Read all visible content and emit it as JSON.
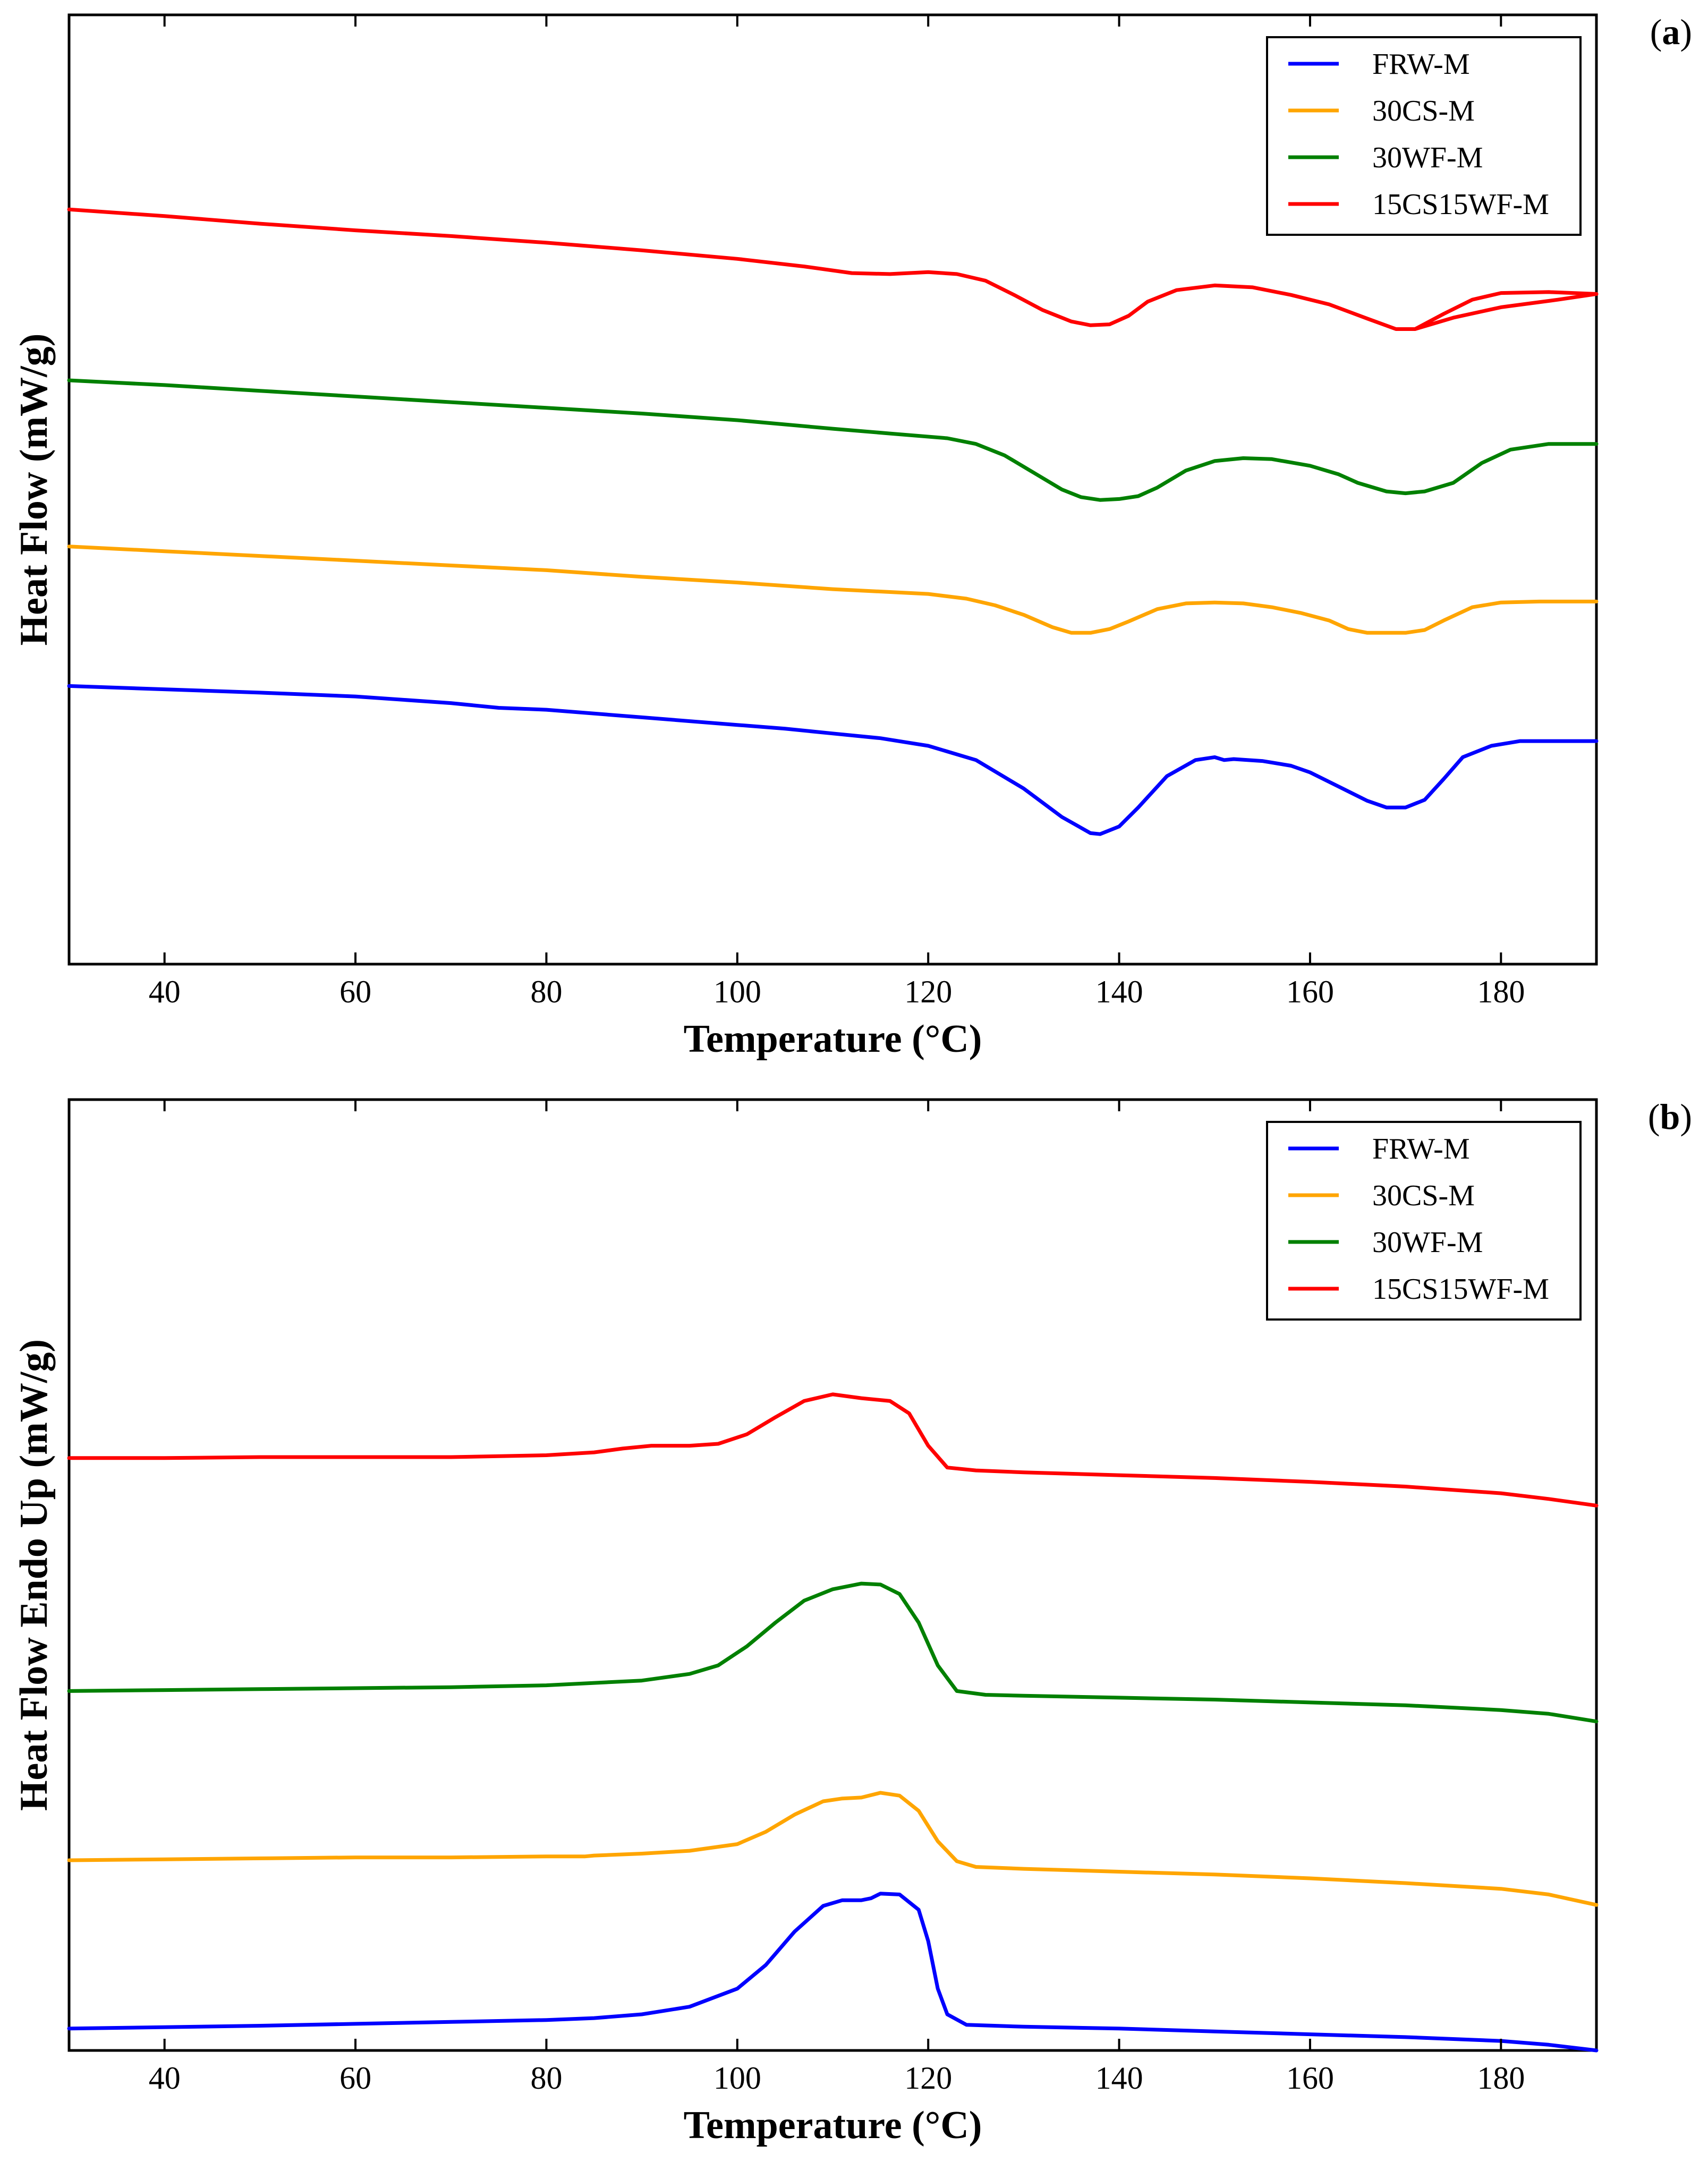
{
  "chart_data": [
    {
      "id": "a",
      "type": "line",
      "panel_label": "a",
      "xlabel": "Temperature (°C)",
      "ylabel": "Heat Flow (mW/g)",
      "xlim": [
        30,
        190
      ],
      "ylim": [
        0,
        100
      ],
      "xticks": [
        40,
        60,
        80,
        100,
        120,
        140,
        160,
        180
      ],
      "legend_position": "top-right",
      "series": [
        {
          "name": "FRW-M",
          "color": "#0000ff",
          "points": [
            [
              30,
              29.3
            ],
            [
              50,
              28.6
            ],
            [
              60,
              28.2
            ],
            [
              70,
              27.5
            ],
            [
              75,
              27.0
            ],
            [
              80,
              26.8
            ],
            [
              90,
              26.0
            ],
            [
              100,
              25.2
            ],
            [
              105,
              24.8
            ],
            [
              110,
              24.3
            ],
            [
              115,
              23.8
            ],
            [
              120,
              23.0
            ],
            [
              125,
              21.5
            ],
            [
              130,
              18.5
            ],
            [
              134,
              15.5
            ],
            [
              137,
              13.8
            ],
            [
              138,
              13.7
            ],
            [
              140,
              14.5
            ],
            [
              142,
              16.5
            ],
            [
              145,
              19.8
            ],
            [
              148,
              21.5
            ],
            [
              150,
              21.8
            ],
            [
              151,
              21.5
            ],
            [
              152,
              21.6
            ],
            [
              155,
              21.4
            ],
            [
              158,
              20.9
            ],
            [
              160,
              20.2
            ],
            [
              163,
              18.7
            ],
            [
              166,
              17.2
            ],
            [
              168,
              16.5
            ],
            [
              170,
              16.5
            ],
            [
              172,
              17.3
            ],
            [
              174,
              19.5
            ],
            [
              176,
              21.8
            ],
            [
              179,
              23.0
            ],
            [
              182,
              23.5
            ],
            [
              186,
              23.5
            ],
            [
              190,
              23.5
            ]
          ]
        },
        {
          "name": "30CS-M",
          "color": "#ffa500",
          "points": [
            [
              30,
              44.0
            ],
            [
              40,
              43.5
            ],
            [
              50,
              43.0
            ],
            [
              60,
              42.5
            ],
            [
              70,
              42.0
            ],
            [
              80,
              41.5
            ],
            [
              90,
              40.8
            ],
            [
              100,
              40.2
            ],
            [
              110,
              39.5
            ],
            [
              120,
              39.0
            ],
            [
              124,
              38.5
            ],
            [
              127,
              37.8
            ],
            [
              130,
              36.8
            ],
            [
              133,
              35.5
            ],
            [
              135,
              34.9
            ],
            [
              137,
              34.9
            ],
            [
              139,
              35.3
            ],
            [
              141,
              36.1
            ],
            [
              144,
              37.4
            ],
            [
              147,
              38.0
            ],
            [
              150,
              38.1
            ],
            [
              153,
              38.0
            ],
            [
              156,
              37.6
            ],
            [
              159,
              37.0
            ],
            [
              162,
              36.2
            ],
            [
              164,
              35.3
            ],
            [
              166,
              34.9
            ],
            [
              170,
              34.9
            ],
            [
              172,
              35.2
            ],
            [
              174,
              36.2
            ],
            [
              177,
              37.6
            ],
            [
              180,
              38.1
            ],
            [
              184,
              38.2
            ],
            [
              190,
              38.2
            ]
          ]
        },
        {
          "name": "30WF-M",
          "color": "#008000",
          "points": [
            [
              30,
              61.5
            ],
            [
              40,
              61.0
            ],
            [
              50,
              60.4
            ],
            [
              60,
              59.8
            ],
            [
              70,
              59.2
            ],
            [
              80,
              58.6
            ],
            [
              90,
              58.0
            ],
            [
              100,
              57.3
            ],
            [
              110,
              56.4
            ],
            [
              116,
              55.9
            ],
            [
              122,
              55.4
            ],
            [
              125,
              54.8
            ],
            [
              128,
              53.6
            ],
            [
              131,
              51.8
            ],
            [
              134,
              50.0
            ],
            [
              136,
              49.2
            ],
            [
              138,
              48.9
            ],
            [
              140,
              49.0
            ],
            [
              142,
              49.3
            ],
            [
              144,
              50.2
            ],
            [
              147,
              52.0
            ],
            [
              150,
              53.0
            ],
            [
              153,
              53.3
            ],
            [
              156,
              53.2
            ],
            [
              160,
              52.5
            ],
            [
              163,
              51.6
            ],
            [
              165,
              50.7
            ],
            [
              168,
              49.8
            ],
            [
              170,
              49.6
            ],
            [
              172,
              49.8
            ],
            [
              175,
              50.7
            ],
            [
              178,
              52.8
            ],
            [
              181,
              54.2
            ],
            [
              185,
              54.8
            ],
            [
              190,
              54.8
            ]
          ]
        },
        {
          "name": "15CS15WF-M",
          "color": "#ff0000",
          "points": [
            [
              30,
              79.5
            ],
            [
              40,
              78.8
            ],
            [
              50,
              78.0
            ],
            [
              60,
              77.3
            ],
            [
              70,
              76.7
            ],
            [
              80,
              76.0
            ],
            [
              90,
              75.2
            ],
            [
              100,
              74.3
            ],
            [
              107,
              73.5
            ],
            [
              112,
              72.8
            ],
            [
              116,
              72.7
            ],
            [
              120,
              72.9
            ],
            [
              123,
              72.7
            ],
            [
              126,
              72.0
            ],
            [
              129,
              70.5
            ],
            [
              132,
              68.9
            ],
            [
              135,
              67.7
            ],
            [
              137,
              67.3
            ],
            [
              139,
              67.4
            ],
            [
              141,
              68.3
            ],
            [
              143,
              69.8
            ],
            [
              146,
              71.0
            ],
            [
              150,
              71.5
            ],
            [
              154,
              71.3
            ],
            [
              158,
              70.5
            ],
            [
              162,
              69.5
            ],
            [
              166,
              68.0
            ],
            [
              169,
              66.9
            ],
            [
              171,
              66.9
            ],
            [
              174,
              68.5
            ],
            [
              177,
              70.0
            ],
            [
              180,
              70.7
            ],
            [
              185,
              70.8
            ],
            [
              190,
              70.6
            ],
            [
              186,
              70.0
            ],
            [
              180,
              69.2
            ],
            [
              175,
              68.1
            ],
            [
              172,
              67.2
            ],
            [
              171,
              66.9
            ]
          ]
        }
      ]
    },
    {
      "id": "b",
      "type": "line",
      "panel_label": "b",
      "xlabel": "Temperature (°C)",
      "ylabel": "Heat Flow Endo Up (mW/g)",
      "xlim": [
        30,
        190
      ],
      "ylim": [
        0,
        100
      ],
      "xticks": [
        40,
        60,
        80,
        100,
        120,
        140,
        160,
        180
      ],
      "legend_position": "top-right",
      "series": [
        {
          "name": "FRW-M",
          "color": "#0000ff",
          "points": [
            [
              30,
              2.3
            ],
            [
              50,
              2.6
            ],
            [
              60,
              2.8
            ],
            [
              70,
              3.0
            ],
            [
              80,
              3.2
            ],
            [
              85,
              3.4
            ],
            [
              90,
              3.8
            ],
            [
              95,
              4.6
            ],
            [
              100,
              6.5
            ],
            [
              103,
              9.0
            ],
            [
              106,
              12.5
            ],
            [
              109,
              15.2
            ],
            [
              111,
              15.8
            ],
            [
              113,
              15.8
            ],
            [
              114,
              16.0
            ],
            [
              115,
              16.5
            ],
            [
              117,
              16.4
            ],
            [
              119,
              14.8
            ],
            [
              120,
              11.5
            ],
            [
              121,
              6.5
            ],
            [
              122,
              3.8
            ],
            [
              124,
              2.7
            ],
            [
              130,
              2.5
            ],
            [
              140,
              2.3
            ],
            [
              150,
              2.0
            ],
            [
              160,
              1.7
            ],
            [
              170,
              1.4
            ],
            [
              180,
              1.0
            ],
            [
              185,
              0.6
            ],
            [
              190,
              0.0
            ]
          ]
        },
        {
          "name": "30CS-M",
          "color": "#ffa500",
          "points": [
            [
              30,
              20.0
            ],
            [
              40,
              20.1
            ],
            [
              50,
              20.2
            ],
            [
              60,
              20.3
            ],
            [
              70,
              20.3
            ],
            [
              80,
              20.4
            ],
            [
              84,
              20.4
            ],
            [
              85,
              20.5
            ],
            [
              90,
              20.7
            ],
            [
              95,
              21.0
            ],
            [
              100,
              21.7
            ],
            [
              103,
              23.0
            ],
            [
              106,
              24.8
            ],
            [
              109,
              26.2
            ],
            [
              111,
              26.5
            ],
            [
              113,
              26.6
            ],
            [
              115,
              27.1
            ],
            [
              117,
              26.8
            ],
            [
              119,
              25.2
            ],
            [
              121,
              22.0
            ],
            [
              123,
              19.9
            ],
            [
              125,
              19.3
            ],
            [
              130,
              19.1
            ],
            [
              140,
              18.8
            ],
            [
              150,
              18.5
            ],
            [
              160,
              18.1
            ],
            [
              170,
              17.6
            ],
            [
              180,
              17.0
            ],
            [
              185,
              16.4
            ],
            [
              190,
              15.3
            ]
          ]
        },
        {
          "name": "30WF-M",
          "color": "#008000",
          "points": [
            [
              30,
              37.8
            ],
            [
              40,
              37.9
            ],
            [
              50,
              38.0
            ],
            [
              60,
              38.1
            ],
            [
              70,
              38.2
            ],
            [
              80,
              38.4
            ],
            [
              90,
              38.9
            ],
            [
              95,
              39.6
            ],
            [
              98,
              40.5
            ],
            [
              101,
              42.5
            ],
            [
              104,
              45.0
            ],
            [
              107,
              47.3
            ],
            [
              110,
              48.5
            ],
            [
              113,
              49.1
            ],
            [
              115,
              49.0
            ],
            [
              117,
              48.0
            ],
            [
              119,
              45.0
            ],
            [
              121,
              40.5
            ],
            [
              123,
              37.8
            ],
            [
              126,
              37.4
            ],
            [
              130,
              37.3
            ],
            [
              140,
              37.1
            ],
            [
              150,
              36.9
            ],
            [
              160,
              36.6
            ],
            [
              170,
              36.3
            ],
            [
              180,
              35.8
            ],
            [
              185,
              35.4
            ],
            [
              190,
              34.6
            ]
          ]
        },
        {
          "name": "15CS15WF-M",
          "color": "#ff0000",
          "points": [
            [
              30,
              62.3
            ],
            [
              40,
              62.3
            ],
            [
              50,
              62.4
            ],
            [
              60,
              62.4
            ],
            [
              70,
              62.4
            ],
            [
              80,
              62.6
            ],
            [
              85,
              62.9
            ],
            [
              88,
              63.3
            ],
            [
              91,
              63.6
            ],
            [
              95,
              63.6
            ],
            [
              98,
              63.8
            ],
            [
              101,
              64.8
            ],
            [
              104,
              66.6
            ],
            [
              107,
              68.3
            ],
            [
              110,
              69.0
            ],
            [
              113,
              68.6
            ],
            [
              116,
              68.3
            ],
            [
              118,
              67.0
            ],
            [
              120,
              63.6
            ],
            [
              122,
              61.3
            ],
            [
              125,
              61.0
            ],
            [
              130,
              60.8
            ],
            [
              140,
              60.5
            ],
            [
              150,
              60.2
            ],
            [
              160,
              59.8
            ],
            [
              170,
              59.3
            ],
            [
              180,
              58.6
            ],
            [
              185,
              58.0
            ],
            [
              190,
              57.3
            ]
          ]
        }
      ]
    }
  ]
}
